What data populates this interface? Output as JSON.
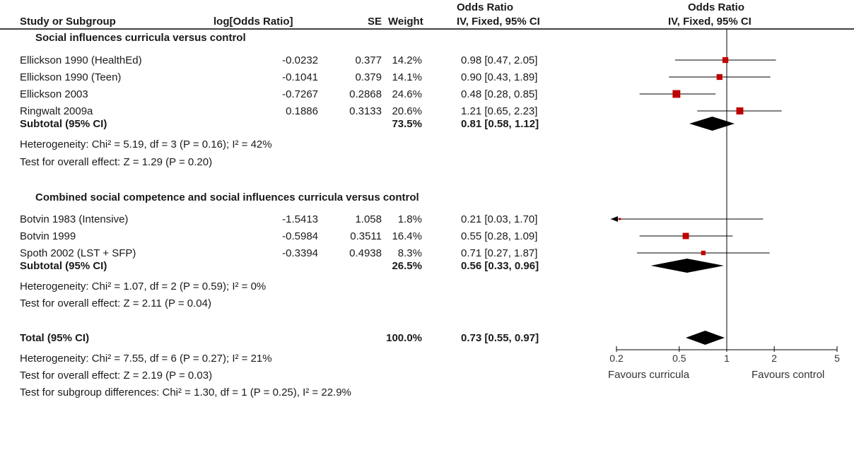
{
  "header": {
    "study": "Study or Subgroup",
    "log_or": "log[Odds Ratio]",
    "se": "SE",
    "weight": "Weight",
    "or_title": "Odds Ratio",
    "or_method": "IV, Fixed, 95% CI",
    "plot_title": "Odds Ratio",
    "plot_method": "IV, Fixed, 95% CI"
  },
  "groups": [
    {
      "title": "Social influences curricula versus control",
      "studies": [
        {
          "name": "Ellickson 1990 (HealthEd)",
          "log_or": "-0.0232",
          "se": "0.377",
          "weight": "14.2%",
          "ci": "0.98 [0.47, 2.05]"
        },
        {
          "name": "Ellickson 1990 (Teen)",
          "log_or": "-0.1041",
          "se": "0.379",
          "weight": "14.1%",
          "ci": "0.90 [0.43, 1.89]"
        },
        {
          "name": "Ellickson 2003",
          "log_or": "-0.7267",
          "se": "0.2868",
          "weight": "24.6%",
          "ci": "0.48 [0.28, 0.85]"
        },
        {
          "name": "Ringwalt 2009a",
          "log_or": "0.1886",
          "se": "0.3133",
          "weight": "20.6%",
          "ci": "1.21 [0.65, 2.23]"
        }
      ],
      "subtotal": {
        "label": "Subtotal (95% CI)",
        "weight": "73.5%",
        "ci": "0.81 [0.58, 1.12]"
      },
      "heterogeneity": "Heterogeneity: Chi² = 5.19, df = 3 (P = 0.16); I² = 42%",
      "overall": "Test for overall effect: Z = 1.29 (P = 0.20)"
    },
    {
      "title": "Combined social competence and social influences curricula versus control",
      "studies": [
        {
          "name": "Botvin 1983 (Intensive)",
          "log_or": "-1.5413",
          "se": "1.058",
          "weight": "1.8%",
          "ci": "0.21 [0.03, 1.70]"
        },
        {
          "name": "Botvin 1999",
          "log_or": "-0.5984",
          "se": "0.3511",
          "weight": "16.4%",
          "ci": "0.55 [0.28, 1.09]"
        },
        {
          "name": "Spoth 2002 (LST + SFP)",
          "log_or": "-0.3394",
          "se": "0.4938",
          "weight": "8.3%",
          "ci": "0.71 [0.27, 1.87]"
        }
      ],
      "subtotal": {
        "label": "Subtotal (95% CI)",
        "weight": "26.5%",
        "ci": "0.56 [0.33, 0.96]"
      },
      "heterogeneity": "Heterogeneity: Chi² = 1.07, df = 2 (P = 0.59); I² = 0%",
      "overall": "Test for overall effect: Z = 2.11 (P = 0.04)"
    }
  ],
  "total": {
    "label": "Total (95% CI)",
    "weight": "100.0%",
    "ci": "0.73 [0.55, 0.97]",
    "heterogeneity": "Heterogeneity: Chi² = 7.55, df = 6 (P = 0.27); I² = 21%",
    "overall": "Test for overall effect: Z = 2.19 (P = 0.03)",
    "subgroup": "Test for subgroup differences: Chi² = 1.30, df = 1 (P = 0.25), I² = 22.9%"
  },
  "axis": {
    "favours_left": "Favours curricula",
    "favours_right": "Favours control"
  },
  "colors": {
    "square": "#c00000",
    "line": "#000000",
    "diamond": "#000000"
  },
  "chart_data": {
    "type": "forest",
    "x_scale": "log",
    "xlim": [
      0.2,
      5
    ],
    "ticks": [
      0.2,
      0.5,
      1,
      2,
      5
    ],
    "tick_labels": [
      "0.2",
      "0.5",
      "1",
      "2",
      "5"
    ],
    "reference_line": 1,
    "studies": [
      {
        "name": "Ellickson 1990 (HealthEd)",
        "or": 0.98,
        "lo": 0.47,
        "hi": 2.05,
        "weight": 14.2
      },
      {
        "name": "Ellickson 1990 (Teen)",
        "or": 0.9,
        "lo": 0.43,
        "hi": 1.89,
        "weight": 14.1
      },
      {
        "name": "Ellickson 2003",
        "or": 0.48,
        "lo": 0.28,
        "hi": 0.85,
        "weight": 24.6
      },
      {
        "name": "Ringwalt 2009a",
        "or": 1.21,
        "lo": 0.65,
        "hi": 2.23,
        "weight": 20.6
      },
      {
        "name": "Botvin 1983 (Intensive)",
        "or": 0.21,
        "lo": 0.03,
        "hi": 1.7,
        "weight": 1.8
      },
      {
        "name": "Botvin 1999",
        "or": 0.55,
        "lo": 0.28,
        "hi": 1.09,
        "weight": 16.4
      },
      {
        "name": "Spoth 2002 (LST + SFP)",
        "or": 0.71,
        "lo": 0.27,
        "hi": 1.87,
        "weight": 8.3
      }
    ],
    "summaries": [
      {
        "name": "Subtotal social influences",
        "or": 0.81,
        "lo": 0.58,
        "hi": 1.12
      },
      {
        "name": "Subtotal combined",
        "or": 0.56,
        "lo": 0.33,
        "hi": 0.96
      },
      {
        "name": "Total",
        "or": 0.73,
        "lo": 0.55,
        "hi": 0.97
      }
    ]
  }
}
